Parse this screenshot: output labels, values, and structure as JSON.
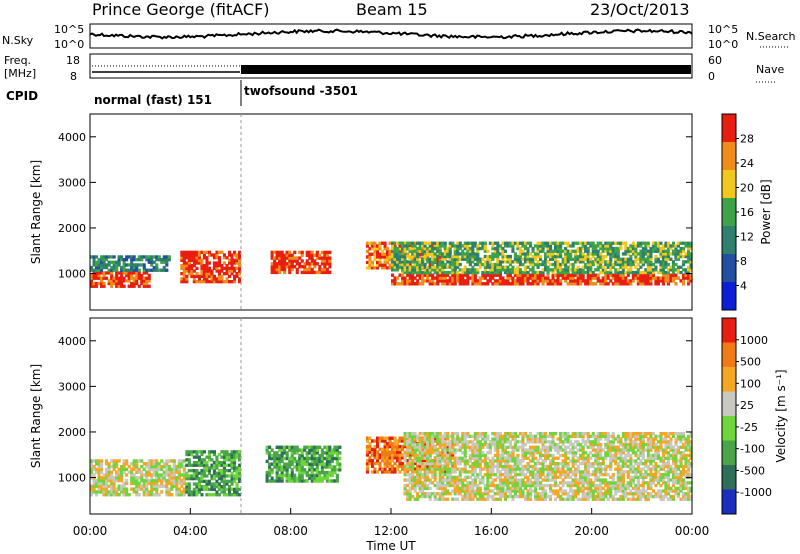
{
  "header": {
    "station": "Prince George (fitACF)",
    "beam": "Beam 15",
    "date": "23/Oct/2013"
  },
  "summary": {
    "nsky_label": "N.Sky",
    "nsky_ticks": [
      "10^5",
      "10^0"
    ],
    "nsearch_label": "N.Search",
    "nsearch_ticks": [
      "10^5",
      "10^0"
    ],
    "freq_label_1": "Freq.",
    "freq_label_2": "[MHz]",
    "freq_ticks": [
      "18",
      "8"
    ],
    "nave_label": "Nave",
    "nave_ticks": [
      "60",
      "0"
    ],
    "cpid_label": "CPID",
    "cpid_segments": [
      {
        "label": "normal (fast) 151",
        "start_h": 0,
        "end_h": 6
      },
      {
        "label": "twofsound -3501",
        "start_h": 6,
        "end_h": 24
      }
    ]
  },
  "chart_data": [
    {
      "type": "heatmap",
      "quantity": "power",
      "ylabel": "Slant Range [km]",
      "ylim": [
        200,
        4500
      ],
      "y_ticks": [
        "4000",
        "3000",
        "2000",
        "1000"
      ],
      "colorbar_label": "Power [dB]",
      "colorbar_ticks": [
        "28",
        "24",
        "20",
        "16",
        "12",
        "8",
        "4"
      ],
      "colors": [
        "#0a1fd6",
        "#234fa0",
        "#2e7f6e",
        "#3ea24a",
        "#f2c81c",
        "#f08c1a",
        "#e81f10"
      ],
      "regions": [
        {
          "h0": 0.0,
          "h1": 2.4,
          "r0": 700,
          "r1": 1050,
          "level": 6
        },
        {
          "h0": 0.0,
          "h1": 3.2,
          "r0": 1050,
          "r1": 1400,
          "level": 2
        },
        {
          "h0": 3.6,
          "h1": 6.0,
          "r0": 800,
          "r1": 1500,
          "level": 6
        },
        {
          "h0": 7.2,
          "h1": 9.6,
          "r0": 1000,
          "r1": 1500,
          "level": 6
        },
        {
          "h0": 11.0,
          "h1": 14.0,
          "r0": 1100,
          "r1": 1700,
          "level": 5
        },
        {
          "h0": 12.0,
          "h1": 24.0,
          "r0": 750,
          "r1": 1000,
          "level": 6
        },
        {
          "h0": 12.0,
          "h1": 24.0,
          "r0": 1000,
          "r1": 1700,
          "level": 3
        }
      ]
    },
    {
      "type": "heatmap",
      "quantity": "velocity",
      "xlabel": "Time UT",
      "ylabel": "Slant Range [km]",
      "ylim": [
        200,
        4500
      ],
      "y_ticks": [
        "4000",
        "3000",
        "2000",
        "1000"
      ],
      "x_ticks": [
        "00:00",
        "04:00",
        "08:00",
        "12:00",
        "16:00",
        "20:00",
        "00:00"
      ],
      "colorbar_label": "Velocity [m s⁻¹]",
      "colorbar_ticks": [
        "1000",
        "500",
        "100",
        "25",
        "-25",
        "-100",
        "-500",
        "-1000"
      ],
      "colors": [
        "#1a2fbe",
        "#2f6f5a",
        "#4aa54a",
        "#6ed63a",
        "#c8c8c0",
        "#f5a623",
        "#f07a14",
        "#e81f10"
      ],
      "regions": [
        {
          "h0": 0.0,
          "h1": 3.8,
          "r0": 600,
          "r1": 1400,
          "level": 4
        },
        {
          "h0": 3.8,
          "h1": 6.0,
          "r0": 600,
          "r1": 1600,
          "level": 2
        },
        {
          "h0": 7.0,
          "h1": 10.0,
          "r0": 900,
          "r1": 1700,
          "level": 2
        },
        {
          "h0": 11.0,
          "h1": 14.5,
          "r0": 1100,
          "r1": 1900,
          "level": 6
        },
        {
          "h0": 12.5,
          "h1": 24.0,
          "r0": 500,
          "r1": 2000,
          "level": 4
        }
      ]
    }
  ]
}
